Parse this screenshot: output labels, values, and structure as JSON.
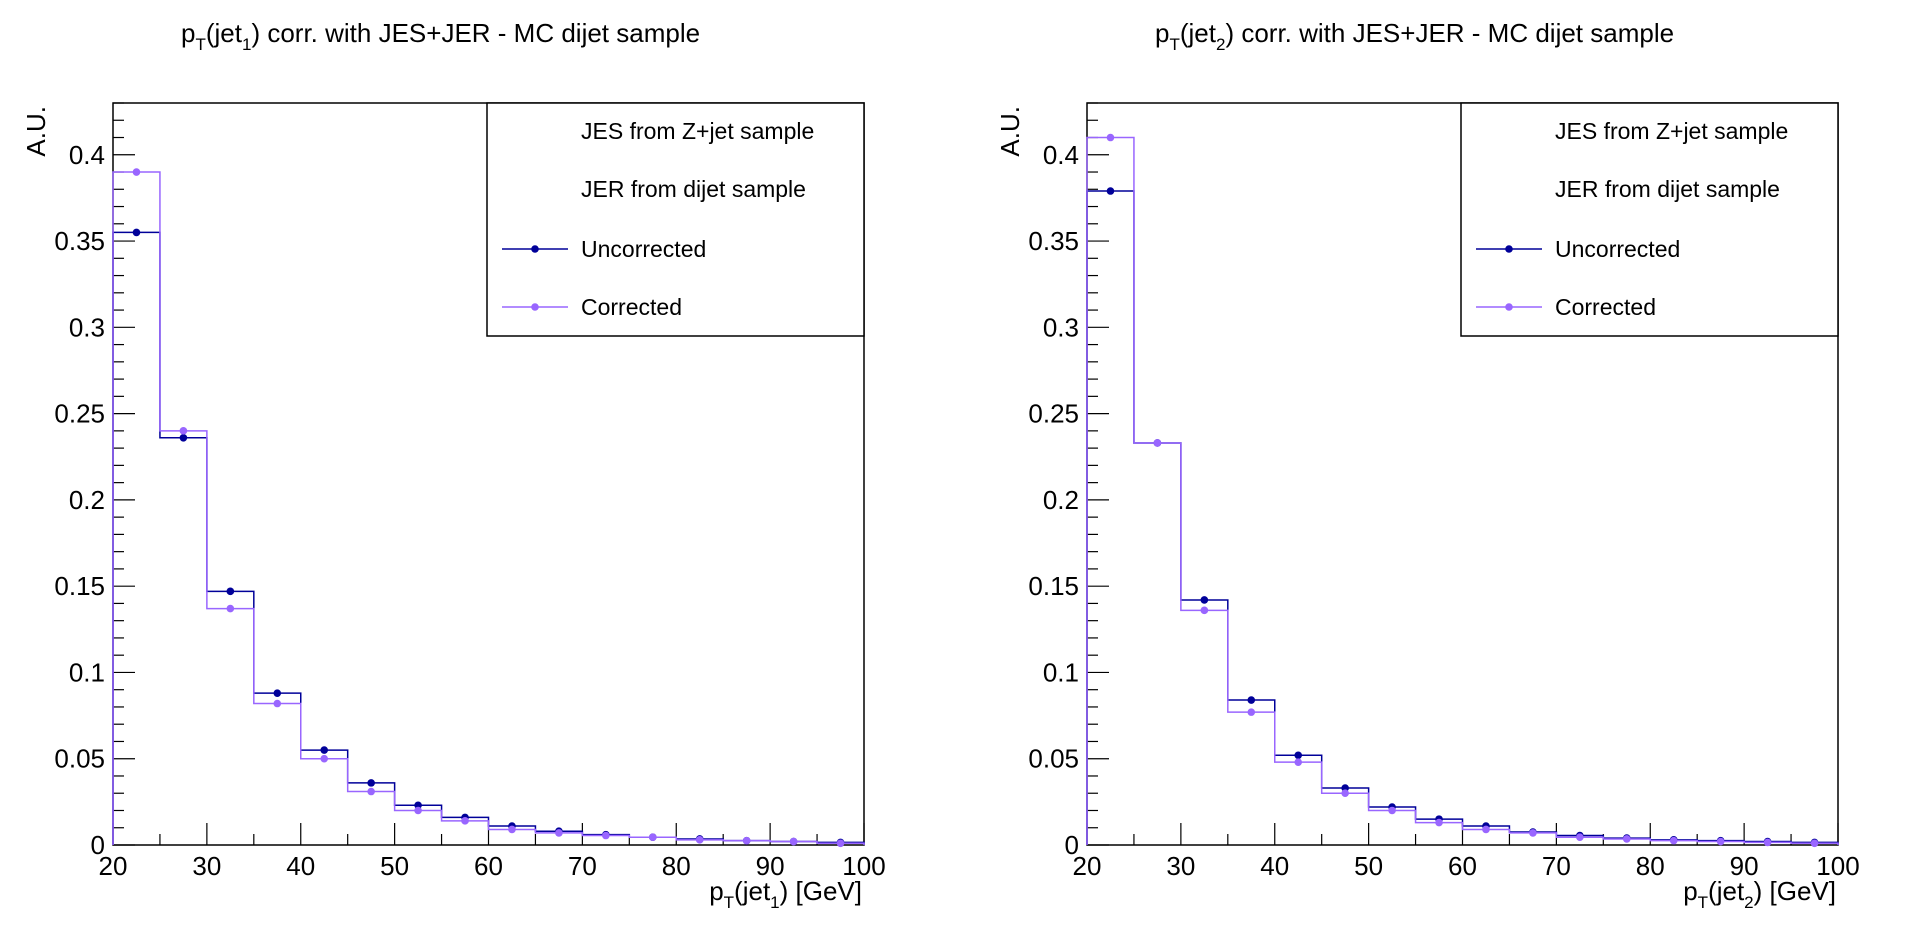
{
  "colors": {
    "uncorrected": "#000099",
    "corrected": "#9966ff",
    "axis": "#000000"
  },
  "chart_data": [
    {
      "type": "histogram",
      "title_base": "p",
      "title_sub": "T",
      "title_mid": "(jet",
      "title_sub2": "1",
      "title_rest": ") corr. with JES+JER - MC dijet sample",
      "ylabel": "A.U.",
      "xlabel_base": "p",
      "xlabel_sub": "T",
      "xlabel_mid": "(jet",
      "xlabel_sub2": "1",
      "xlabel_rest": ") [GeV]",
      "xlim": [
        20,
        100
      ],
      "ylim": [
        0,
        0.43
      ],
      "x_ticks": [
        "20",
        "30",
        "40",
        "50",
        "60",
        "70",
        "80",
        "90",
        "100"
      ],
      "y_ticks": [
        "0",
        "0.05",
        "0.1",
        "0.15",
        "0.2",
        "0.25",
        "0.3",
        "0.35",
        "0.4"
      ],
      "bin_edges": [
        20,
        25,
        30,
        35,
        40,
        45,
        50,
        55,
        60,
        65,
        70,
        75,
        80,
        85,
        90,
        95,
        100
      ],
      "legend": {
        "placement": "top-right",
        "entries": [
          "JES from Z+jet sample",
          "JER from dijet sample",
          "Uncorrected",
          "Corrected"
        ]
      },
      "series": [
        {
          "name": "Uncorrected",
          "values": [
            0.355,
            0.236,
            0.147,
            0.088,
            0.055,
            0.036,
            0.023,
            0.016,
            0.011,
            0.008,
            0.006,
            0.0045,
            0.0035,
            0.0025,
            0.002,
            0.0015
          ]
        },
        {
          "name": "Corrected",
          "values": [
            0.39,
            0.24,
            0.137,
            0.082,
            0.05,
            0.031,
            0.02,
            0.014,
            0.009,
            0.007,
            0.0055,
            0.0045,
            0.003,
            0.0025,
            0.002,
            0.001
          ]
        }
      ]
    },
    {
      "type": "histogram",
      "title_base": "p",
      "title_sub": "T",
      "title_mid": "(jet",
      "title_sub2": "2",
      "title_rest": ") corr. with JES+JER - MC dijet sample",
      "ylabel": "A.U.",
      "xlabel_base": "p",
      "xlabel_sub": "T",
      "xlabel_mid": "(jet",
      "xlabel_sub2": "2",
      "xlabel_rest": ") [GeV]",
      "xlim": [
        20,
        100
      ],
      "ylim": [
        0,
        0.43
      ],
      "x_ticks": [
        "20",
        "30",
        "40",
        "50",
        "60",
        "70",
        "80",
        "90",
        "100"
      ],
      "y_ticks": [
        "0",
        "0.05",
        "0.1",
        "0.15",
        "0.2",
        "0.25",
        "0.3",
        "0.35",
        "0.4"
      ],
      "bin_edges": [
        20,
        25,
        30,
        35,
        40,
        45,
        50,
        55,
        60,
        65,
        70,
        75,
        80,
        85,
        90,
        95,
        100
      ],
      "legend": {
        "placement": "top-right",
        "entries": [
          "JES from Z+jet sample",
          "JER from dijet sample",
          "Uncorrected",
          "Corrected"
        ]
      },
      "series": [
        {
          "name": "Uncorrected",
          "values": [
            0.379,
            0.233,
            0.142,
            0.084,
            0.052,
            0.033,
            0.022,
            0.015,
            0.011,
            0.0075,
            0.0055,
            0.004,
            0.003,
            0.0025,
            0.002,
            0.0015
          ]
        },
        {
          "name": "Corrected",
          "values": [
            0.41,
            0.233,
            0.136,
            0.077,
            0.048,
            0.03,
            0.02,
            0.013,
            0.009,
            0.007,
            0.0045,
            0.0035,
            0.0025,
            0.002,
            0.0015,
            0.001
          ]
        }
      ]
    }
  ]
}
